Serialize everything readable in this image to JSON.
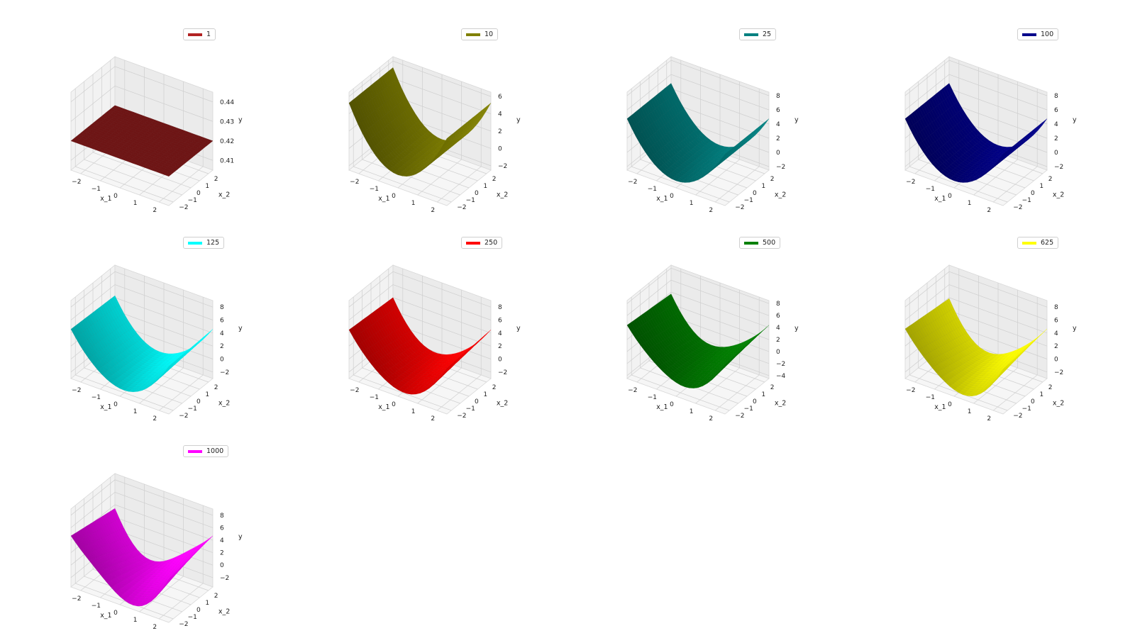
{
  "figure": {
    "xlabel": "x_1",
    "ylabel": "x_2",
    "zlabel": "y"
  },
  "chart_data": [
    {
      "type": "surface",
      "legend": "1",
      "color": "#b22222",
      "x_ticks": [
        "−2",
        "−1",
        "0",
        "1",
        "2"
      ],
      "y_ticks": [
        "−2",
        "−1",
        "0",
        "1",
        "2"
      ],
      "z_ticks": [
        "0.41",
        "0.42",
        "0.43",
        "0.44"
      ],
      "zlim": [
        0.405,
        0.445
      ],
      "surface": {
        "kind": "flat",
        "level": 0.42
      }
    },
    {
      "type": "surface",
      "legend": "10",
      "color": "#808000",
      "x_ticks": [
        "−2",
        "−1",
        "0",
        "1",
        "2"
      ],
      "y_ticks": [
        "−2",
        "−1",
        "0",
        "1",
        "2"
      ],
      "z_ticks": [
        "−2",
        "0",
        "2",
        "4",
        "6"
      ],
      "zlim": [
        -2.5,
        6.5
      ],
      "surface": {
        "kind": "parabola",
        "a": 1.0,
        "c": -1.0,
        "wiggle": 0
      }
    },
    {
      "type": "surface",
      "legend": "25",
      "color": "#008080",
      "x_ticks": [
        "−2",
        "−1",
        "0",
        "1",
        "2"
      ],
      "y_ticks": [
        "−2",
        "−1",
        "0",
        "1",
        "2"
      ],
      "z_ticks": [
        "−2",
        "0",
        "2",
        "4",
        "6",
        "8"
      ],
      "zlim": [
        -2.5,
        8.5
      ],
      "surface": {
        "kind": "parabola",
        "a": 1.0,
        "c": -1.5,
        "wiggle": 0
      }
    },
    {
      "type": "surface",
      "legend": "100",
      "color": "#00008b",
      "x_ticks": [
        "−2",
        "−1",
        "0",
        "1",
        "2"
      ],
      "y_ticks": [
        "−2",
        "−1",
        "0",
        "1",
        "2"
      ],
      "z_ticks": [
        "−2",
        "0",
        "2",
        "4",
        "6",
        "8"
      ],
      "zlim": [
        -2.5,
        8.5
      ],
      "surface": {
        "kind": "parabola",
        "a": 1.0,
        "c": -1.5,
        "wiggle": 0
      }
    },
    {
      "type": "surface",
      "legend": "125",
      "color": "#00ffff",
      "x_ticks": [
        "−2",
        "−1",
        "0",
        "1",
        "2"
      ],
      "y_ticks": [
        "−2",
        "−1",
        "0",
        "1",
        "2"
      ],
      "z_ticks": [
        "−2",
        "0",
        "2",
        "4",
        "6",
        "8"
      ],
      "zlim": [
        -3,
        9
      ],
      "surface": {
        "kind": "parabola",
        "a": 1.0,
        "c": -1.8,
        "wiggle": 0.3
      }
    },
    {
      "type": "surface",
      "legend": "250",
      "color": "#ff0000",
      "x_ticks": [
        "−2",
        "−1",
        "0",
        "1",
        "2"
      ],
      "y_ticks": [
        "−2",
        "−1",
        "0",
        "1",
        "2"
      ],
      "z_ticks": [
        "−2",
        "0",
        "2",
        "4",
        "6",
        "8"
      ],
      "zlim": [
        -3,
        9
      ],
      "surface": {
        "kind": "parabola",
        "a": 1.0,
        "c": -2.0,
        "wiggle": 0.5
      }
    },
    {
      "type": "surface",
      "legend": "500",
      "color": "#008000",
      "x_ticks": [
        "−2",
        "−1",
        "0",
        "1",
        "2"
      ],
      "y_ticks": [
        "−2",
        "−1",
        "0",
        "1",
        "2"
      ],
      "z_ticks": [
        "−4",
        "−2",
        "0",
        "2",
        "4",
        "6",
        "8"
      ],
      "zlim": [
        -4.5,
        8.5
      ],
      "surface": {
        "kind": "parabola",
        "a": 1.0,
        "c": -2.2,
        "wiggle": 0.7
      }
    },
    {
      "type": "surface",
      "legend": "625",
      "color": "#ffff00",
      "x_ticks": [
        "−2",
        "−1",
        "0",
        "1",
        "2"
      ],
      "y_ticks": [
        "−2",
        "−1",
        "0",
        "1",
        "2"
      ],
      "z_ticks": [
        "−2",
        "0",
        "2",
        "4",
        "6",
        "8"
      ],
      "zlim": [
        -3,
        9
      ],
      "surface": {
        "kind": "parabola",
        "a": 1.0,
        "c": -2.0,
        "wiggle": 0.8
      }
    },
    {
      "type": "surface",
      "legend": "1000",
      "color": "#ff00ff",
      "x_ticks": [
        "−2",
        "−1",
        "0",
        "1",
        "2"
      ],
      "y_ticks": [
        "−2",
        "−1",
        "0",
        "1",
        "2"
      ],
      "z_ticks": [
        "−2",
        "0",
        "2",
        "4",
        "6",
        "8"
      ],
      "zlim": [
        -3.5,
        9
      ],
      "surface": {
        "kind": "parabola",
        "a": 1.0,
        "c": -2.2,
        "wiggle": 1.3
      }
    }
  ]
}
